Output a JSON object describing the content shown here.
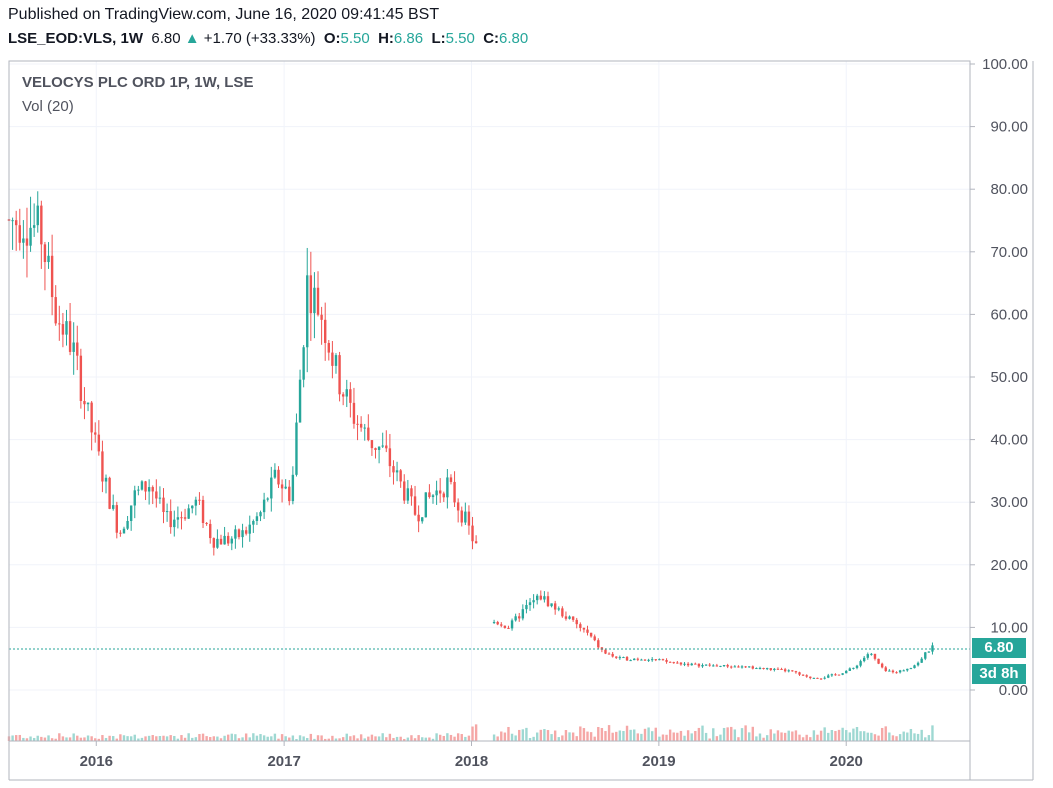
{
  "header": {
    "published": "Published on TradingView.com, June 16, 2020 09:41:45 BST",
    "symbol": "LSE_EOD:VLS, 1W",
    "last": "6.80",
    "arrow": "▲",
    "change": "+1.70 (+33.33%)",
    "o_label": "O:",
    "o_value": "5.50",
    "h_label": "H:",
    "h_value": "6.86",
    "l_label": "L:",
    "l_value": "5.50",
    "c_label": "C:",
    "c_value": "6.80"
  },
  "legend": {
    "title": "VELOCYS PLC ORD 1P, 1W, LSE",
    "volume": "Vol (20)"
  },
  "price_tag": "6.80",
  "countdown_tag": "3d 8h",
  "colors": {
    "up": "#26a69a",
    "down": "#ef5350",
    "up_vol": "#9ed8d2",
    "down_vol": "#f5a7a6",
    "grid": "#f0f3fa"
  },
  "chart_data": {
    "type": "candlestick",
    "title": "VELOCYS PLC ORD 1P, 1W, LSE",
    "y_ticks": [
      "100.00",
      "90.00",
      "80.00",
      "70.00",
      "60.00",
      "50.00",
      "40.00",
      "30.00",
      "20.00",
      "10.00",
      "0.00"
    ],
    "x_ticks": [
      "2016",
      "2017",
      "2018",
      "2019",
      "2020"
    ],
    "ylim": [
      0,
      100
    ],
    "last_price": 6.8,
    "series_price": [
      [
        "2015-08",
        75
      ],
      [
        "2015-09",
        73
      ],
      [
        "2015-10",
        60
      ],
      [
        "2015-11",
        55
      ],
      [
        "2015-12",
        44
      ],
      [
        "2016-01",
        34
      ],
      [
        "2016-02",
        25
      ],
      [
        "2016-03",
        31
      ],
      [
        "2016-04",
        33
      ],
      [
        "2016-05",
        27
      ],
      [
        "2016-06",
        28
      ],
      [
        "2016-07",
        30
      ],
      [
        "2016-08",
        24
      ],
      [
        "2016-09",
        24
      ],
      [
        "2016-10",
        25
      ],
      [
        "2016-11",
        28
      ],
      [
        "2016-12",
        34
      ],
      [
        "2017-01",
        31
      ],
      [
        "2017-02",
        65
      ],
      [
        "2017-03",
        60
      ],
      [
        "2017-04",
        50
      ],
      [
        "2017-05",
        44
      ],
      [
        "2017-06",
        40
      ],
      [
        "2017-07",
        38
      ],
      [
        "2017-08",
        33
      ],
      [
        "2017-09",
        28
      ],
      [
        "2017-10",
        31
      ],
      [
        "2017-11",
        33
      ],
      [
        "2017-12",
        28
      ],
      [
        "2018-01",
        22
      ],
      [
        "2018-02",
        11
      ],
      [
        "2018-03",
        10
      ],
      [
        "2018-04",
        13
      ],
      [
        "2018-05",
        15
      ],
      [
        "2018-06",
        13
      ],
      [
        "2018-07",
        11
      ],
      [
        "2018-08",
        9
      ],
      [
        "2018-09",
        6
      ],
      [
        "2018-10",
        5
      ],
      [
        "2018-11",
        5
      ],
      [
        "2018-12",
        5
      ],
      [
        "2019-01",
        4.5
      ],
      [
        "2019-03",
        4
      ],
      [
        "2019-05",
        3.8
      ],
      [
        "2019-07",
        3.5
      ],
      [
        "2019-09",
        3
      ],
      [
        "2019-10",
        2
      ],
      [
        "2019-11",
        2
      ],
      [
        "2019-12",
        2.5
      ],
      [
        "2020-01",
        3.5
      ],
      [
        "2020-02",
        6
      ],
      [
        "2020-03",
        3
      ],
      [
        "2020-04",
        3
      ],
      [
        "2020-05",
        4
      ],
      [
        "2020-06",
        6.8
      ]
    ]
  }
}
